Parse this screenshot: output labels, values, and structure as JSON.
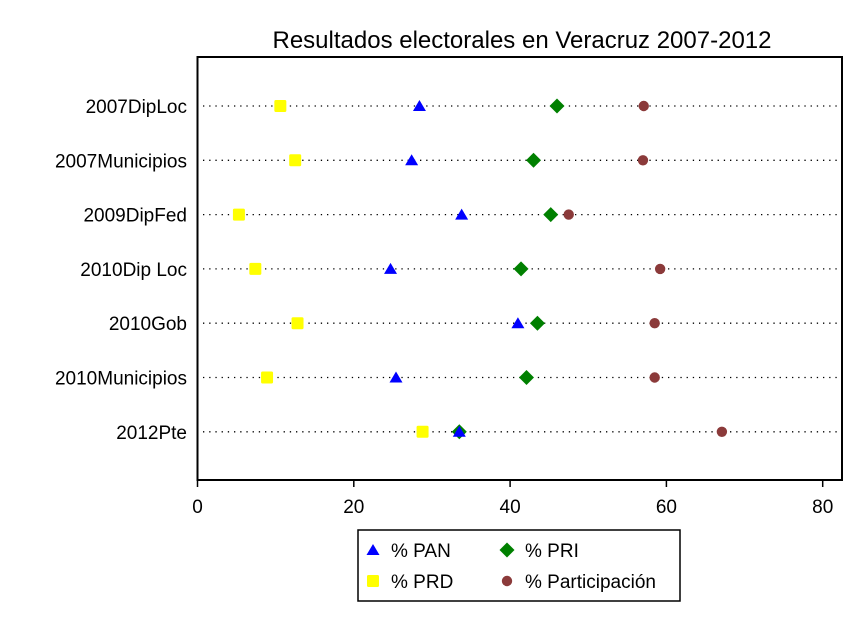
{
  "chart_data": {
    "type": "scatter",
    "subtype": "dot-plot",
    "title": "Resultados electorales en Veracruz 2007-2012",
    "xlabel": "",
    "ylabel": "",
    "xlim": [
      0,
      82.5
    ],
    "xticks": [
      0,
      20,
      40,
      60,
      80
    ],
    "grid": "horizontal dotted per category",
    "legend_position": "bottom-center",
    "categories": [
      "2007DipLoc",
      "2007Municipios",
      "2009DipFed",
      "2010Dip Loc",
      "2010Gob",
      "2010Municipios",
      "2012Pte"
    ],
    "series": [
      {
        "name": "% PAN",
        "marker": "triangle",
        "color": "#0000FF",
        "values": [
          28.4,
          27.4,
          33.8,
          24.7,
          41.0,
          25.4,
          33.5
        ]
      },
      {
        "name": "% PRI",
        "marker": "diamond",
        "color": "#008000",
        "values": [
          46.0,
          43.0,
          45.2,
          41.4,
          43.5,
          42.1,
          33.5
        ]
      },
      {
        "name": "% PRD",
        "marker": "square",
        "color": "#FFFF00",
        "values": [
          10.6,
          12.5,
          5.3,
          7.4,
          12.8,
          8.9,
          28.8
        ]
      },
      {
        "name": "% Participación",
        "marker": "circle",
        "color": "#8B3A3A",
        "values": [
          57.1,
          57.0,
          47.5,
          59.2,
          58.5,
          58.5,
          67.1
        ]
      }
    ],
    "legend_order": [
      "% PAN",
      "% PRI",
      "% PRD",
      "% Participación"
    ]
  }
}
